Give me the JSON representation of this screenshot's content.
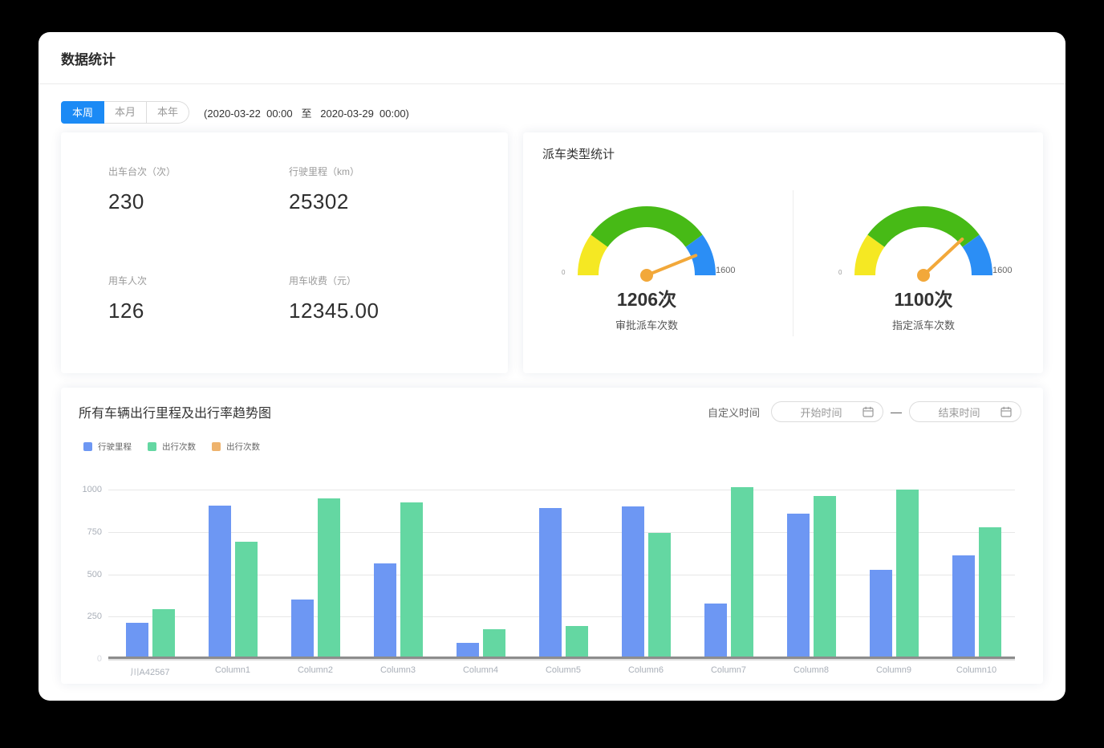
{
  "header": {
    "title": "数据统计"
  },
  "toolbar": {
    "tabs": [
      {
        "id": "this-week",
        "label": "本周",
        "active": true
      },
      {
        "id": "this-month",
        "label": "本月",
        "active": false
      },
      {
        "id": "this-year",
        "label": "本年",
        "active": false
      }
    ],
    "date_range": "(2020-03-22  00:00   至   2020-03-29  00:00)"
  },
  "stats": {
    "items": [
      {
        "id": "dispatch-count",
        "label": "出车台次（次）",
        "value": "230"
      },
      {
        "id": "mileage",
        "label": "行驶里程（km）",
        "value": "25302"
      },
      {
        "id": "passenger-count",
        "label": "用车人次",
        "value": "126"
      },
      {
        "id": "fee",
        "label": "用车收费（元）",
        "value": "12345.00"
      }
    ]
  },
  "dispatch": {
    "title": "派车类型统计",
    "needle_color": "#f2a83a",
    "segments": [
      {
        "to": 0.2,
        "color": "#f5e823"
      },
      {
        "to": 0.8,
        "color": "#47ba16"
      },
      {
        "to": 1.0,
        "color": "#2b8ef5"
      }
    ],
    "gauges": [
      {
        "id": "approved-dispatch",
        "value_label": "1206次",
        "caption": "审批派车次数",
        "min": "0",
        "max": "1600",
        "needle_deg": 22
      },
      {
        "id": "assigned-dispatch",
        "value_label": "1100次",
        "caption": "指定派车次数",
        "min": "0",
        "max": "1600",
        "needle_deg": 43
      }
    ]
  },
  "trend": {
    "title": "所有车辆出行里程及出行率趋势图",
    "custom_time_label": "自定义时间",
    "start_placeholder": "开始时间",
    "end_placeholder": "结束时间",
    "separator": "—"
  },
  "chart_data": {
    "type": "bar",
    "title": "所有车辆出行里程及出行率趋势图",
    "categories": [
      "川A42567",
      "Column1",
      "Column2",
      "Column3",
      "Column4",
      "Column5",
      "Column6",
      "Column7",
      "Column8",
      "Column9",
      "Column10"
    ],
    "series": [
      {
        "name": "行驶里程",
        "color": "#6d97f3",
        "values": [
          200,
          890,
          335,
          550,
          80,
          875,
          885,
          315,
          845,
          510,
          595
        ]
      },
      {
        "name": "出行次数",
        "color": "#64d7a2",
        "values": [
          280,
          680,
          935,
          910,
          160,
          180,
          730,
          1000,
          950,
          985,
          765
        ]
      },
      {
        "name": "出行次数",
        "color": "#eeb36d",
        "values": [
          0,
          0,
          0,
          0,
          0,
          0,
          0,
          0,
          0,
          0,
          0
        ]
      }
    ],
    "ylim": [
      0,
      1000
    ],
    "yticks": [
      0,
      250,
      500,
      750,
      1000
    ],
    "grid": true,
    "legend_position": "top-left"
  }
}
